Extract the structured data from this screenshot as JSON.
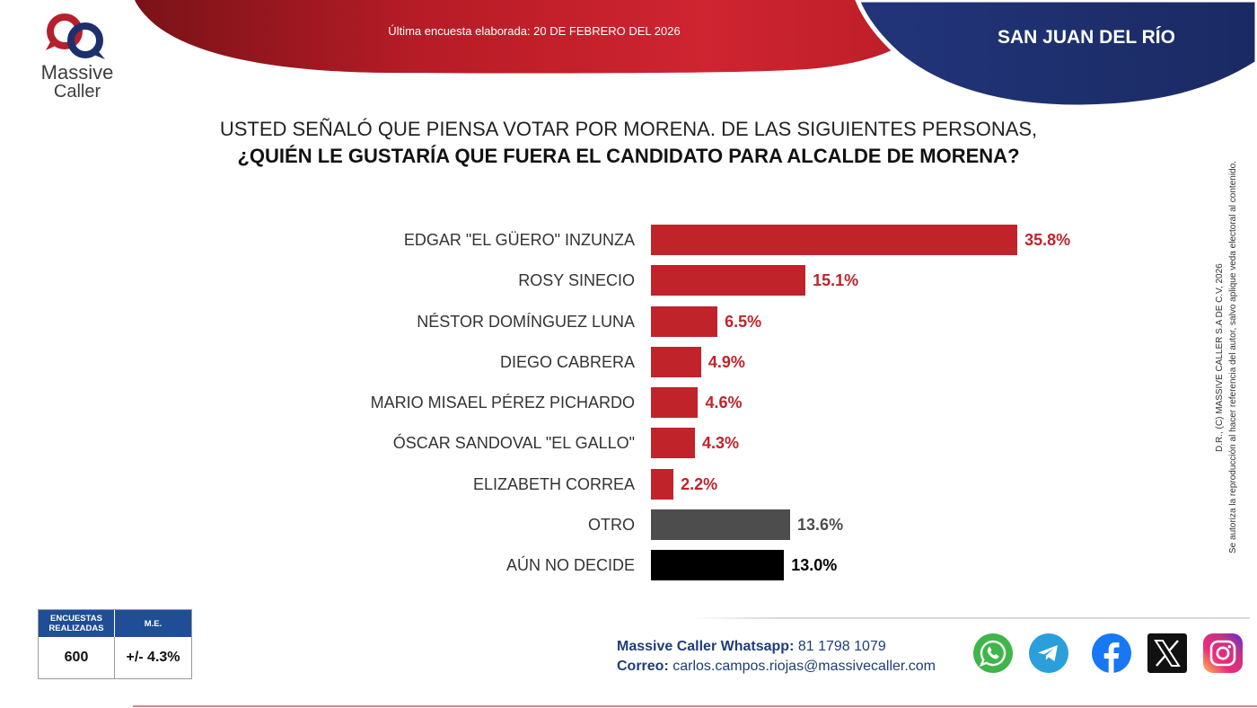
{
  "brand": {
    "name_line1": "Massive",
    "name_line2": "Caller",
    "colors": {
      "red": "#b5202c",
      "navy": "#1e2f6e"
    }
  },
  "banner": {
    "survey_date": "Última encuesta elaborada: 20 DE FEBRERO DEL 2026",
    "location": "SAN JUAN DEL RÍO"
  },
  "question": {
    "line1": "USTED SEÑALÓ QUE PIENSA VOTAR POR MORENA. DE LAS SIGUIENTES PERSONAS,",
    "line2": "¿QUIÉN LE GUSTARÍA QUE FUERA EL CANDIDATO PARA ALCALDE DE MORENA?"
  },
  "chart_data": {
    "type": "bar",
    "orientation": "horizontal",
    "categories": [
      "EDGAR \"EL GÜERO\" INZUNZA",
      "ROSY SINECIO",
      "NÉSTOR DOMÍNGUEZ LUNA",
      "DIEGO CABRERA",
      "MARIO MISAEL PÉREZ PICHARDO",
      "ÓSCAR SANDOVAL \"EL GALLO\"",
      "ELIZABETH CORREA",
      "OTRO",
      "AÚN NO DECIDE"
    ],
    "values": [
      35.8,
      15.1,
      6.5,
      4.9,
      4.6,
      4.3,
      2.2,
      13.6,
      13.0
    ],
    "value_labels": [
      "35.8%",
      "15.1%",
      "6.5%",
      "4.9%",
      "4.6%",
      "4.3%",
      "2.2%",
      "13.6%",
      "13.0%"
    ],
    "bar_colors": [
      "#c1232b",
      "#c1232b",
      "#c1232b",
      "#c1232b",
      "#c1232b",
      "#c1232b",
      "#c1232b",
      "#4d4d4d",
      "#000000"
    ],
    "value_label_colors": [
      "#c1232b",
      "#c1232b",
      "#c1232b",
      "#c1232b",
      "#c1232b",
      "#c1232b",
      "#c1232b",
      "#4d4d4d",
      "#000000"
    ],
    "grid": false,
    "legend": false
  },
  "sample": {
    "count_header": "ENCUESTAS REALIZADAS",
    "margin_header": "M.E.",
    "count": "600",
    "margin": "+/- 4.3%",
    "header_color": "#1f4e96"
  },
  "contact": {
    "whatsapp_label": "Massive Caller Whatsapp:",
    "whatsapp_number": "81 1798 1079",
    "email_label": "Correo:",
    "email": "carlos.campos.riojas@massivecaller.com"
  },
  "social_icons": [
    "whatsapp-icon",
    "telegram-icon",
    "facebook-icon",
    "x-icon",
    "instagram-icon"
  ],
  "copyright": {
    "line1": "D.R., (C) MASSIVE CALLER S.A DE C.V, 2026",
    "line2": "Se autoriza la reproducción al hacer referencia del autor, salvo aplique veda electoral al contenido."
  }
}
